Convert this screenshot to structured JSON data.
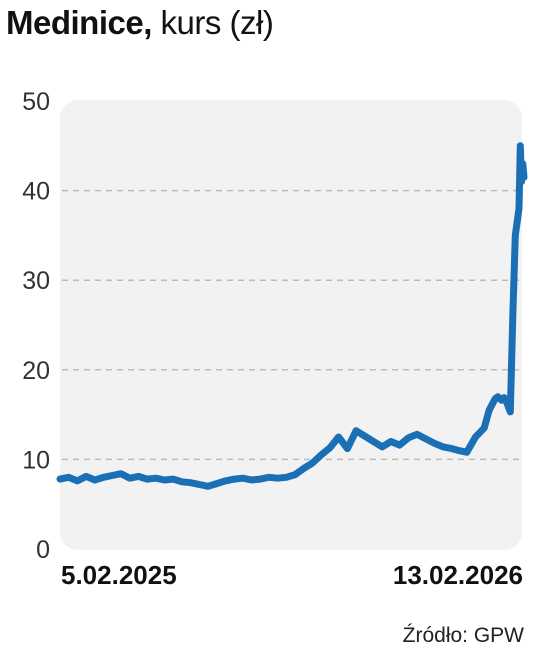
{
  "title": {
    "main": "Medinice,",
    "sub": " kurs (zł)"
  },
  "source": "Źródło: GPW",
  "colors": {
    "line": "#1a6fb5",
    "plot_background": "#f2f2f2",
    "grid": "#bbbbbb"
  },
  "chart_data": {
    "type": "line",
    "title": "Medinice, kurs (zł)",
    "xlabel": "",
    "ylabel": "",
    "ylim": [
      0,
      50
    ],
    "yticks": [
      0,
      10,
      20,
      30,
      40,
      50
    ],
    "grid": "horizontal dashed",
    "x_tick_labels": [
      "5.02.2025",
      "13.02.2026"
    ],
    "x_range": [
      "2025-02-05",
      "2026-02-13"
    ],
    "series": [
      {
        "name": "",
        "x": [
          "2025-02-05",
          "2025-02-12",
          "2025-02-19",
          "2025-02-26",
          "2025-03-05",
          "2025-03-12",
          "2025-03-19",
          "2025-03-26",
          "2025-04-02",
          "2025-04-09",
          "2025-04-16",
          "2025-04-23",
          "2025-04-30",
          "2025-05-07",
          "2025-05-14",
          "2025-05-21",
          "2025-05-28",
          "2025-06-04",
          "2025-06-11",
          "2025-06-18",
          "2025-06-25",
          "2025-07-02",
          "2025-07-09",
          "2025-07-16",
          "2025-07-23",
          "2025-07-30",
          "2025-08-06",
          "2025-08-13",
          "2025-08-20",
          "2025-08-27",
          "2025-09-03",
          "2025-09-10",
          "2025-09-17",
          "2025-09-24",
          "2025-10-01",
          "2025-10-08",
          "2025-10-15",
          "2025-10-22",
          "2025-10-29",
          "2025-11-05",
          "2025-11-12",
          "2025-11-19",
          "2025-11-26",
          "2025-12-03",
          "2025-12-10",
          "2025-12-17",
          "2025-12-22",
          "2025-12-29",
          "2026-01-05",
          "2026-01-12",
          "2026-01-16",
          "2026-01-19",
          "2026-01-21",
          "2026-01-23",
          "2026-01-26",
          "2026-01-28",
          "2026-01-30",
          "2026-02-02",
          "2026-02-04",
          "2026-02-06",
          "2026-02-09",
          "2026-02-10",
          "2026-02-11",
          "2026-02-12",
          "2026-02-13"
        ],
        "y": [
          7.8,
          8.0,
          7.6,
          8.1,
          7.7,
          8.0,
          8.2,
          8.4,
          7.9,
          8.1,
          7.8,
          7.9,
          7.7,
          7.8,
          7.5,
          7.4,
          7.2,
          7.0,
          7.3,
          7.6,
          7.8,
          7.9,
          7.7,
          7.8,
          8.0,
          7.9,
          8.0,
          8.3,
          9.0,
          9.6,
          10.5,
          11.3,
          12.5,
          11.2,
          13.2,
          12.6,
          12.0,
          11.4,
          12.0,
          11.6,
          12.4,
          12.8,
          12.3,
          11.8,
          11.4,
          11.2,
          11.0,
          10.8,
          12.5,
          13.5,
          15.5,
          16.3,
          16.8,
          17.0,
          16.6,
          16.9,
          16.4,
          15.3,
          26.0,
          35.0,
          38.0,
          45.0,
          41.0,
          43.0,
          41.5
        ]
      }
    ]
  }
}
